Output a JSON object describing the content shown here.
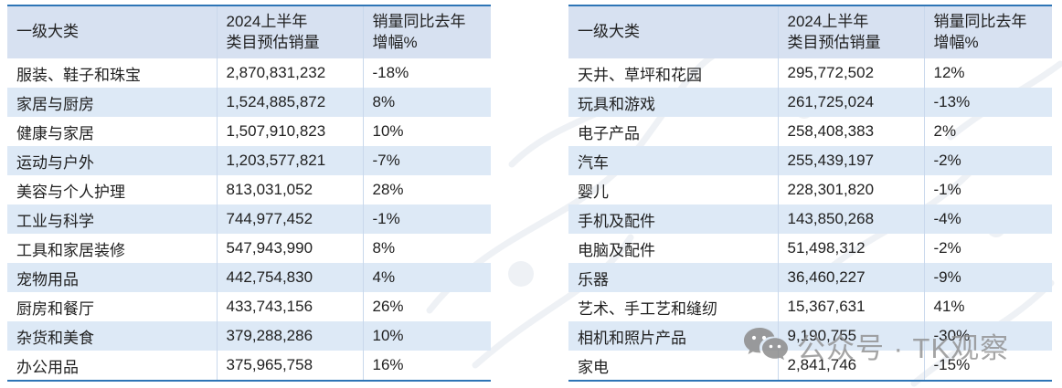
{
  "colors": {
    "border_blue": "#2e75b6",
    "header_fill": "#d7e1f1",
    "band_fill": "#dde9f6",
    "grid_line": "#c9d8ec",
    "text": "#212121",
    "watermark_gray": "#8c8c8c"
  },
  "chart_data": [
    {
      "type": "table",
      "title": "",
      "columns": [
        "一级大类",
        "2024上半年\n类目预估销量",
        "销量同比去年\n增幅%"
      ],
      "rows": [
        [
          "服装、鞋子和珠宝",
          "2,870,831,232",
          "-18%"
        ],
        [
          "家居与厨房",
          "1,524,885,872",
          "8%"
        ],
        [
          "健康与家居",
          "1,507,910,823",
          "10%"
        ],
        [
          "运动与户外",
          "1,203,577,821",
          "-7%"
        ],
        [
          "美容与个人护理",
          "813,031,052",
          "28%"
        ],
        [
          "工业与科学",
          "744,977,452",
          "-1%"
        ],
        [
          "工具和家居装修",
          "547,943,990",
          "8%"
        ],
        [
          "宠物用品",
          "442,754,830",
          "4%"
        ],
        [
          "厨房和餐厅",
          "433,743,156",
          "26%"
        ],
        [
          "杂货和美食",
          "379,288,286",
          "10%"
        ],
        [
          "办公用品",
          "375,965,758",
          "16%"
        ]
      ]
    },
    {
      "type": "table",
      "title": "",
      "columns": [
        "一级大类",
        "2024上半年\n类目预估销量",
        "销量同比去年\n增幅%"
      ],
      "rows": [
        [
          "天井、草坪和花园",
          "295,772,502",
          "12%"
        ],
        [
          "玩具和游戏",
          "261,725,024",
          "-13%"
        ],
        [
          "电子产品",
          "258,408,383",
          "2%"
        ],
        [
          "汽车",
          "255,439,197",
          "-2%"
        ],
        [
          "婴儿",
          "228,301,820",
          "-1%"
        ],
        [
          "手机及配件",
          "143,850,268",
          "-4%"
        ],
        [
          "电脑及配件",
          "51,498,312",
          "-2%"
        ],
        [
          "乐器",
          "36,460,227",
          "-9%"
        ],
        [
          "艺术、手工艺和缝纫",
          "15,367,631",
          "41%"
        ],
        [
          "相机和照片产品",
          "9,190,755",
          "-30%"
        ],
        [
          "家电",
          "2,841,746",
          "-15%"
        ]
      ]
    }
  ],
  "watermark": {
    "icon": "wechat-icon",
    "label": "公众号 · TK观察"
  }
}
